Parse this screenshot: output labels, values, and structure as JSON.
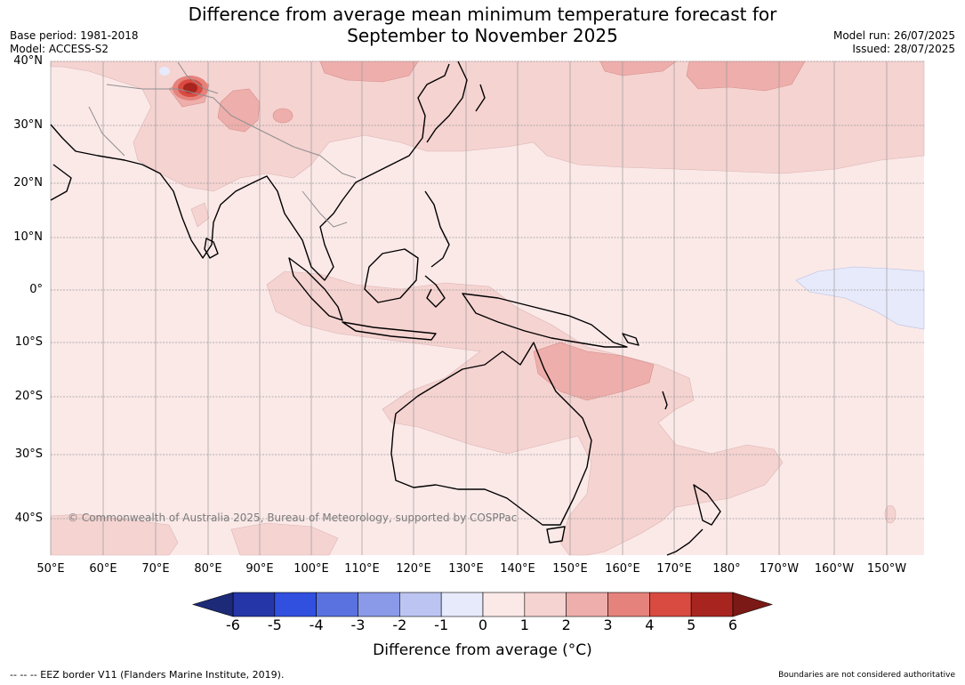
{
  "title_line1": "Difference from average mean minimum temperature forecast for",
  "title_line2": "September to November 2025",
  "base_period": "Base period: 1981-2018",
  "model": "Model: ACCESS-S2",
  "model_run": "Model run: 26/07/2025",
  "issued": "Issued: 28/07/2025",
  "copyright": "© Commonwealth of Australia 2025, Bureau of Meteorology, supported by COSPPac",
  "lat_labels": [
    "40°N",
    "30°N",
    "20°N",
    "10°N",
    "0°",
    "10°S",
    "20°S",
    "30°S",
    "40°S"
  ],
  "lon_labels": [
    "50°E",
    "60°E",
    "70°E",
    "80°E",
    "90°E",
    "100°E",
    "110°E",
    "120°E",
    "130°E",
    "140°E",
    "150°E",
    "160°E",
    "170°E",
    "180°",
    "170°W",
    "160°W",
    "150°W"
  ],
  "colorbar": {
    "ticks": [
      "-6",
      "-5",
      "-4",
      "-3",
      "-2",
      "-1",
      "0",
      "1",
      "2",
      "3",
      "4",
      "5",
      "6"
    ],
    "colors": [
      "#2436a8",
      "#3150e0",
      "#5a72e0",
      "#8a9ae8",
      "#bcc5f2",
      "#e6eafb",
      "#fbe9e8",
      "#f5d3d1",
      "#eeaeab",
      "#e6827c",
      "#d94a40",
      "#a8251f"
    ],
    "under_color": "#1c2a78",
    "over_color": "#7a1915",
    "label": "Difference from average (°C)"
  },
  "footer_left": "--  --  -- EEZ border V11 (Flanders Marine Institute, 2019).",
  "footer_right": "Boundaries are not considered authoritative"
}
